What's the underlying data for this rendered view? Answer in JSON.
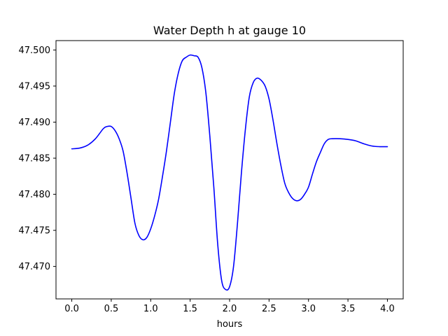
{
  "chart_data": {
    "type": "line",
    "title": "Water Depth h at gauge 10",
    "xlabel": "hours",
    "ylabel": "",
    "xlim": [
      -0.2,
      4.2
    ],
    "ylim": [
      47.4655,
      47.5013
    ],
    "grid": false,
    "legend": "none",
    "x_ticks": [
      "0.0",
      "0.5",
      "1.0",
      "1.5",
      "2.0",
      "2.5",
      "3.0",
      "3.5",
      "4.0"
    ],
    "y_ticks": [
      "47.470",
      "47.475",
      "47.480",
      "47.485",
      "47.490",
      "47.495",
      "47.500"
    ],
    "series": [
      {
        "color": "#0000ff",
        "x": [
          0.0,
          0.1,
          0.2,
          0.3,
          0.4,
          0.45,
          0.5,
          0.55,
          0.6,
          0.65,
          0.7,
          0.75,
          0.8,
          0.85,
          0.9,
          0.95,
          1.0,
          1.05,
          1.1,
          1.15,
          1.2,
          1.25,
          1.3,
          1.35,
          1.4,
          1.45,
          1.5,
          1.55,
          1.6,
          1.65,
          1.7,
          1.75,
          1.8,
          1.85,
          1.9,
          1.95,
          2.0,
          2.05,
          2.1,
          2.15,
          2.2,
          2.25,
          2.3,
          2.35,
          2.4,
          2.45,
          2.5,
          2.55,
          2.6,
          2.65,
          2.7,
          2.75,
          2.8,
          2.85,
          2.9,
          2.95,
          3.0,
          3.05,
          3.1,
          3.15,
          3.2,
          3.25,
          3.3,
          3.4,
          3.5,
          3.6,
          3.7,
          3.8,
          3.9,
          4.0
        ],
        "y": [
          47.4863,
          47.4864,
          47.4868,
          47.4877,
          47.4891,
          47.4894,
          47.4894,
          47.4888,
          47.4877,
          47.486,
          47.483,
          47.4795,
          47.476,
          47.4743,
          47.4737,
          47.474,
          47.4752,
          47.477,
          47.4793,
          47.4825,
          47.486,
          47.49,
          47.494,
          47.4968,
          47.4985,
          47.499,
          47.4993,
          47.4992,
          47.499,
          47.4975,
          47.494,
          47.488,
          47.481,
          47.473,
          47.468,
          47.4668,
          47.4672,
          47.47,
          47.476,
          47.483,
          47.489,
          47.4935,
          47.4955,
          47.4961,
          47.4958,
          47.495,
          47.4932,
          47.4903,
          47.487,
          47.484,
          47.4815,
          47.4802,
          47.4794,
          47.4791,
          47.4793,
          47.48,
          47.481,
          47.4828,
          47.4845,
          47.4858,
          47.487,
          47.4876,
          47.4877,
          47.4877,
          47.4876,
          47.4874,
          47.487,
          47.4867,
          47.4866,
          47.4866
        ]
      }
    ]
  }
}
